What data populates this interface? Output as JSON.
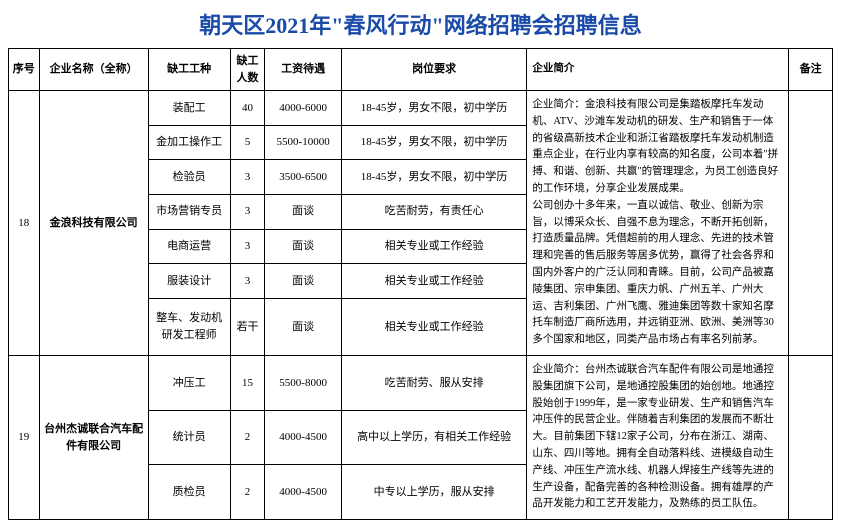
{
  "title": "朝天区2021年\"春风行动\"网络招聘会招聘信息",
  "headers": {
    "seq": "序号",
    "company": "企业名称（全称）",
    "job": "缺工工种",
    "count": "缺工人数",
    "salary": "工资待遇",
    "requirement": "岗位要求",
    "intro": "企业简介",
    "note": "备注"
  },
  "companies": [
    {
      "seq": "18",
      "name": "金浪科技有限公司",
      "intro": "企业简介：金浪科技有限公司是集踏板摩托车发动机、ATV、沙滩车发动机的研发、生产和销售于一体的省级高新技术企业和浙江省踏板摩托车发动机制造重点企业，在行业内享有较高的知名度，公司本着\"拼搏、和谐、创新、共赢\"的管理理念，为员工创造良好的工作环境，分享企业发展成果。\n公司创办十多年来，一直以诚信、敬业、创新为宗旨，以博采众长、自强不息为理念，不断开拓创新，打造质量品牌。凭借超前的用人理念、先进的技术管理和完善的售后服务等居多优势，赢得了社会各界和国内外客户的广泛认同和青睐。目前，公司产品被嘉陵集团、宗申集团、重庆力帆、广州五羊、广州大运、吉利集团、广州飞鹰、雅迪集团等数十家知名摩托车制造厂商所选用，并远销亚洲、欧洲、美洲等30多个国家和地区，同类产品市场占有率名列前茅。",
      "note": "",
      "jobs": [
        {
          "name": "装配工",
          "count": "40",
          "salary": "4000-6000",
          "req": "18-45岁，男女不限，初中学历"
        },
        {
          "name": "金加工操作工",
          "count": "5",
          "salary": "5500-10000",
          "req": "18-45岁，男女不限，初中学历"
        },
        {
          "name": "检验员",
          "count": "3",
          "salary": "3500-6500",
          "req": "18-45岁，男女不限，初中学历"
        },
        {
          "name": "市场营销专员",
          "count": "3",
          "salary": "面谈",
          "req": "吃苦耐劳，有责任心"
        },
        {
          "name": "电商运营",
          "count": "3",
          "salary": "面谈",
          "req": "相关专业或工作经验"
        },
        {
          "name": "服装设计",
          "count": "3",
          "salary": "面谈",
          "req": "相关专业或工作经验"
        },
        {
          "name": "整车、发动机研发工程师",
          "count": "若干",
          "salary": "面谈",
          "req": "相关专业或工作经验"
        }
      ]
    },
    {
      "seq": "19",
      "name": "台州杰诚联合汽车配件有限公司",
      "intro": "企业简介：台州杰诚联合汽车配件有限公司是地通控股集团旗下公司，是地通控股集团的始创地。地通控股始创于1999年，是一家专业研发、生产和销售汽车冲压件的民营企业。伴随着吉利集团的发展而不断壮大。目前集团下辖12家子公司，分布在浙江、湖南、山东、四川等地。拥有全自动落料线、进模级自动生产线、冲压生产流水线、机器人焊接生产线等先进的生产设备，配备完善的各种检测设备。拥有雄厚的产品开发能力和工艺开发能力，及熟练的员工队伍。",
      "note": "",
      "jobs": [
        {
          "name": "冲压工",
          "count": "15",
          "salary": "5500-8000",
          "req": "吃苦耐劳、服从安排"
        },
        {
          "name": "统计员",
          "count": "2",
          "salary": "4000-4500",
          "req": "高中以上学历，有相关工作经验"
        },
        {
          "name": "质检员",
          "count": "2",
          "salary": "4000-4500",
          "req": "中专以上学历，服从安排"
        }
      ]
    }
  ]
}
